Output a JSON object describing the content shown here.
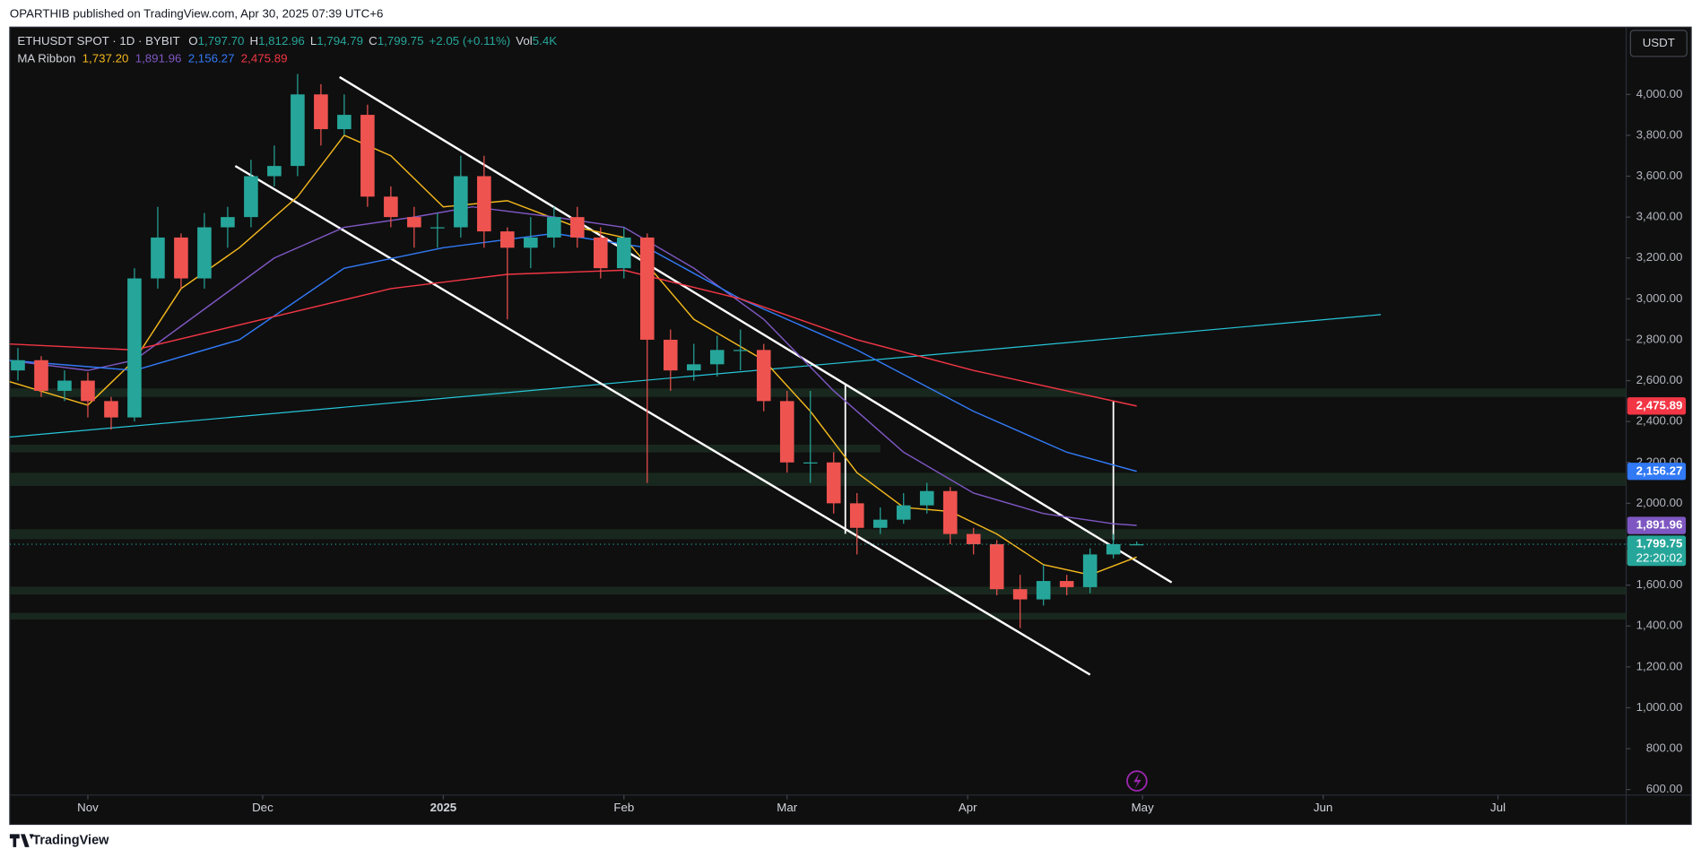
{
  "header": {
    "publish_text": "OPARTHIB published on TradingView.com, Apr 30, 2025 07:39 UTC+6"
  },
  "legend": {
    "symbol": "ETHUSDT SPOT · 1D · BYBIT",
    "o_key": "O",
    "open": "1,797.70",
    "h_key": "H",
    "high": "1,812.96",
    "l_key": "L",
    "low": "1,794.79",
    "c_key": "C",
    "change": "+2.05 (+0.11%)",
    "vol_key": "Vol",
    "volume": "5.4K",
    "ma_name": "MA Ribbon"
  },
  "currency": "USDT",
  "countdown": "22:20:02",
  "footer": {
    "brand": "TradingView"
  },
  "chart_data": {
    "type": "candlestick",
    "x": [
      2,
      6,
      10,
      14,
      18,
      22,
      26,
      30,
      34,
      38,
      42,
      46,
      50,
      54,
      58,
      62,
      66,
      70,
      74,
      78,
      82,
      86,
      90,
      94,
      98,
      102,
      106,
      110,
      114,
      118,
      122,
      126,
      130,
      134,
      138,
      142,
      146,
      150,
      154,
      158,
      162,
      166,
      170,
      174,
      178,
      182,
      186,
      190,
      194
    ],
    "open": [
      2650,
      2700,
      2550,
      2600,
      2500,
      2420,
      3100,
      3300,
      3100,
      3350,
      3400,
      3600,
      3650,
      4000,
      3830,
      3900,
      3500,
      3400,
      3350,
      3350,
      3600,
      3330,
      3250,
      3300,
      3400,
      3300,
      3150,
      3300,
      2800,
      2650,
      2680,
      2750,
      2750,
      2500,
      2200,
      2200,
      2000,
      1880,
      1920,
      1990,
      2060,
      1850,
      1800,
      1580,
      1530,
      1620,
      1590,
      1750,
      1797.7
    ],
    "high": [
      2760,
      2720,
      2650,
      2640,
      2520,
      3150,
      3450,
      3320,
      3420,
      3450,
      3680,
      3750,
      4100,
      4050,
      4000,
      3950,
      3550,
      3450,
      3420,
      3700,
      3700,
      3350,
      3400,
      3450,
      3450,
      3350,
      3350,
      3320,
      2850,
      2780,
      2820,
      2850,
      2780,
      2550,
      2550,
      2250,
      2050,
      1980,
      2050,
      2100,
      2080,
      1880,
      1820,
      1650,
      1700,
      1650,
      1780,
      1850,
      1812.96
    ],
    "low": [
      2600,
      2520,
      2500,
      2420,
      2360,
      2400,
      3050,
      3050,
      3050,
      3250,
      3350,
      3550,
      3600,
      3750,
      3800,
      3450,
      3350,
      3250,
      3250,
      3300,
      3250,
      2900,
      3150,
      3250,
      3250,
      3100,
      3100,
      2100,
      2550,
      2600,
      2620,
      2650,
      2450,
      2150,
      2100,
      1950,
      1750,
      1850,
      1900,
      1950,
      1800,
      1750,
      1550,
      1390,
      1500,
      1550,
      1560,
      1730,
      1794.79
    ],
    "close": [
      2700,
      2550,
      2600,
      2500,
      2420,
      3100,
      3300,
      3100,
      3350,
      3400,
      3600,
      3650,
      4000,
      3830,
      3900,
      3500,
      3400,
      3350,
      3350,
      3600,
      3330,
      3250,
      3300,
      3400,
      3300,
      3150,
      3300,
      2800,
      2650,
      2680,
      2750,
      2750,
      2500,
      2200,
      2200,
      2000,
      1880,
      1920,
      1990,
      2060,
      1850,
      1800,
      1580,
      1530,
      1620,
      1590,
      1750,
      1800,
      1799.75
    ],
    "up_color": "#26a69a",
    "down_color": "#ef5350",
    "xlim": [
      0.6,
      278
    ],
    "xticks": [
      {
        "value": 14,
        "label": "Nov"
      },
      {
        "value": 44,
        "label": "Dec"
      },
      {
        "value": 75,
        "label": "2025"
      },
      {
        "value": 106,
        "label": "Feb"
      },
      {
        "value": 134,
        "label": "Mar"
      },
      {
        "value": 165,
        "label": "Apr"
      },
      {
        "value": 195,
        "label": "May"
      },
      {
        "value": 226,
        "label": "Jun"
      },
      {
        "value": 256,
        "label": "Jul"
      }
    ],
    "ylim": [
      573,
      4329
    ],
    "yticks": [
      {
        "value": 600,
        "label": "600.00"
      },
      {
        "value": 800,
        "label": "800.00"
      },
      {
        "value": 1000,
        "label": "1,000.00"
      },
      {
        "value": 1200,
        "label": "1,200.00"
      },
      {
        "value": 1400,
        "label": "1,400.00"
      },
      {
        "value": 1600,
        "label": "1,600.00"
      },
      {
        "value": 1800,
        "label": "1,800.00"
      },
      {
        "value": 2000,
        "label": "2,000.00"
      },
      {
        "value": 2200,
        "label": "2,200.00"
      },
      {
        "value": 2400,
        "label": "2,400.00"
      },
      {
        "value": 2600,
        "label": "2,600.00"
      },
      {
        "value": 2800,
        "label": "2,800.00"
      },
      {
        "value": 3000,
        "label": "3,000.00"
      },
      {
        "value": 3200,
        "label": "3,200.00"
      },
      {
        "value": 3400,
        "label": "3,400.00"
      },
      {
        "value": 3600,
        "label": "3,600.00"
      },
      {
        "value": 3800,
        "label": "3,800.00"
      },
      {
        "value": 4000,
        "label": "4,000.00"
      }
    ],
    "grid": false,
    "last_price": {
      "value": 1799.75,
      "label": "1,799.75",
      "color": "#26a69a"
    },
    "zones": [
      {
        "low": 2520,
        "high": 2562
      },
      {
        "low": 2249,
        "high": 2287,
        "end": 150
      },
      {
        "low": 2085,
        "high": 2149
      },
      {
        "low": 1825,
        "high": 1873
      },
      {
        "low": 1554,
        "high": 1592
      },
      {
        "low": 1432,
        "high": 1464
      }
    ],
    "ma_ribbon": [
      {
        "color": "#f2b71d",
        "label_text": "#131722",
        "last_label": "1,737.20",
        "x": [
          0,
          14,
          22,
          30,
          40,
          50,
          58,
          66,
          75,
          86,
          98,
          106,
          118,
          130,
          138,
          146,
          154,
          162,
          170,
          178,
          186,
          194
        ],
        "values": [
          2600,
          2480,
          2700,
          3050,
          3250,
          3500,
          3800,
          3700,
          3450,
          3480,
          3350,
          3300,
          2900,
          2700,
          2450,
          2150,
          1980,
          1960,
          1850,
          1700,
          1650,
          1737.2
        ]
      },
      {
        "color": "#7e57c2",
        "label_text": "#ffffff",
        "last_label": "1,891.96",
        "x": [
          0,
          14,
          22,
          34,
          46,
          58,
          70,
          80,
          94,
          106,
          118,
          130,
          142,
          154,
          166,
          178,
          190,
          194
        ],
        "values": [
          2700,
          2650,
          2700,
          2950,
          3200,
          3350,
          3400,
          3450,
          3400,
          3350,
          3150,
          2900,
          2550,
          2250,
          2050,
          1950,
          1900,
          1891.96
        ]
      },
      {
        "color": "#3179f5",
        "label_text": "#ffffff",
        "last_label": "2,156.27",
        "x": [
          0,
          22,
          40,
          58,
          75,
          94,
          110,
          126,
          146,
          166,
          182,
          194
        ],
        "values": [
          2700,
          2650,
          2800,
          3150,
          3250,
          3320,
          3250,
          3000,
          2750,
          2450,
          2250,
          2156.27
        ]
      },
      {
        "color": "#f23645",
        "label_text": "#ffffff",
        "last_label": "2,475.89",
        "x": [
          0,
          22,
          44,
          66,
          86,
          106,
          126,
          146,
          166,
          182,
          194
        ],
        "values": [
          2780,
          2750,
          2900,
          3050,
          3120,
          3140,
          3000,
          2800,
          2650,
          2550,
          2475.89
        ]
      }
    ],
    "trendlines": [
      {
        "color": "#26c6da",
        "width": 1,
        "x": [
          0.6,
          235.9
        ],
        "values": [
          2324,
          2923
        ]
      },
      {
        "color": "#ffffff",
        "width": 2,
        "x": [
          57.2,
          200
        ],
        "values": [
          4085,
          1613
        ]
      },
      {
        "color": "#ffffff",
        "width": 2,
        "x": [
          39.3,
          186
        ],
        "values": [
          3650,
          1162
        ]
      },
      {
        "color": "#ffffff",
        "width": 1.5,
        "x": [
          144,
          144
        ],
        "values": [
          2578,
          1851
        ]
      },
      {
        "color": "#ffffff",
        "width": 1.5,
        "x": [
          190,
          190
        ],
        "values": [
          2499,
          1820
        ]
      }
    ]
  }
}
